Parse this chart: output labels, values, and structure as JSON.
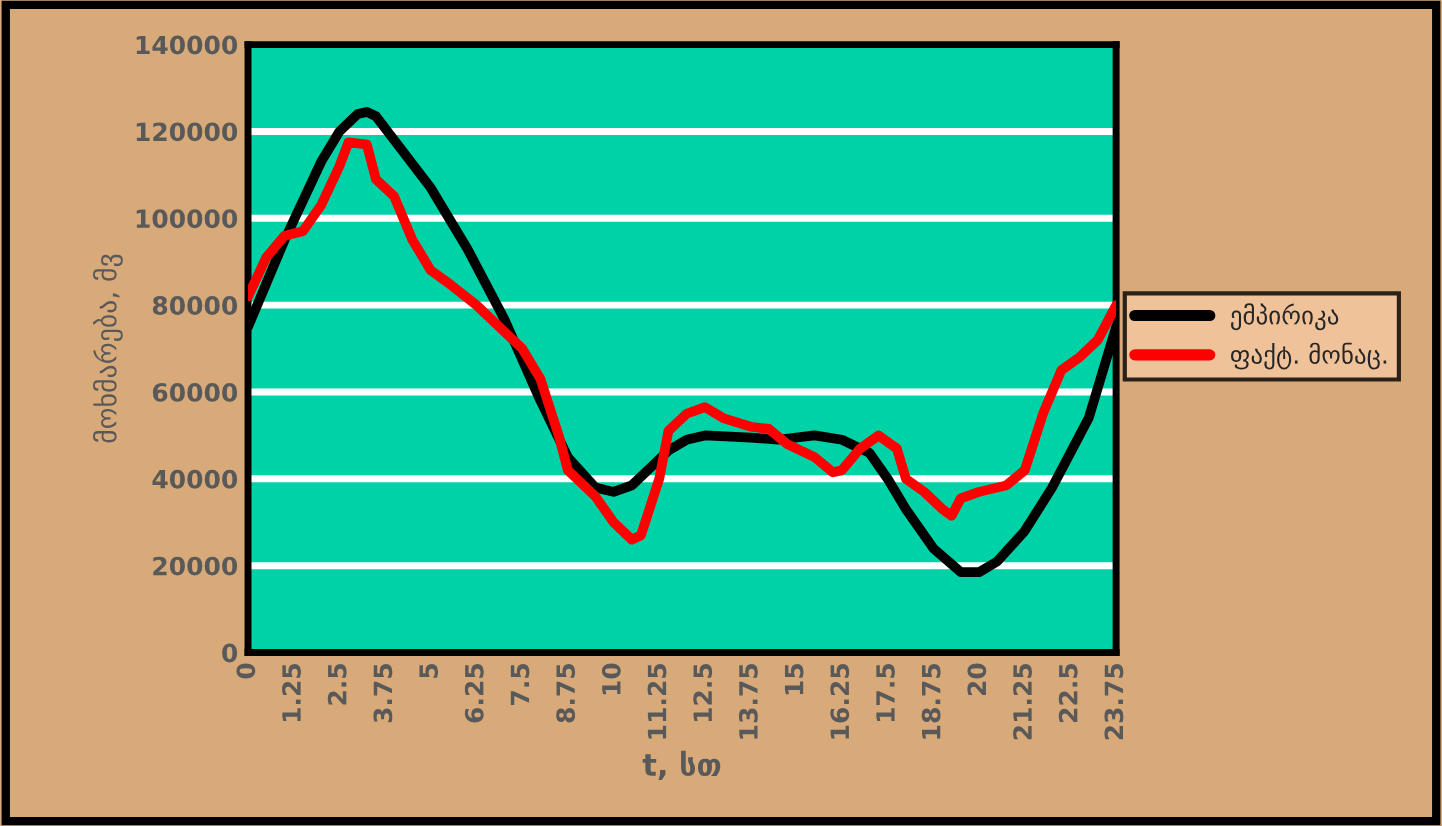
{
  "chart_data": {
    "type": "line",
    "xlabel": "t, სთ",
    "ylabel": "მოხმარება, მვ",
    "xlim": [
      0,
      23.75
    ],
    "xticks": [
      0,
      1.25,
      2.5,
      3.75,
      5,
      6.25,
      7.5,
      8.75,
      10,
      11.25,
      12.5,
      13.75,
      15,
      16.25,
      17.5,
      18.75,
      20,
      21.25,
      22.5,
      23.75
    ],
    "ylim": [
      0,
      140000
    ],
    "yticks": [
      0,
      20000,
      40000,
      60000,
      80000,
      100000,
      120000,
      140000
    ],
    "grid": "y",
    "legend": "right",
    "marker": "none",
    "line_style": "solid",
    "series": [
      {
        "name": "ემპირიკა",
        "color": "#000000",
        "x": [
          0,
          1,
          2,
          2.5,
          3,
          3.25,
          3.5,
          4,
          5,
          6,
          7,
          8,
          8.75,
          9.5,
          10,
          10.5,
          11,
          11.5,
          12,
          12.5,
          13.75,
          14.5,
          15.5,
          16.25,
          17,
          17.5,
          18,
          18.75,
          19.5,
          20,
          20.5,
          21.25,
          22,
          22.5,
          23,
          23.75
        ],
        "values": [
          75000,
          95000,
          113000,
          120000,
          124000,
          124500,
          123500,
          118000,
          107000,
          93000,
          77000,
          58000,
          45000,
          38000,
          37000,
          38500,
          42500,
          46500,
          49000,
          50000,
          49500,
          49000,
          50000,
          49000,
          46000,
          40000,
          33000,
          24000,
          18500,
          18500,
          21000,
          28000,
          38000,
          46000,
          54000,
          75000
        ]
      },
      {
        "name": "ფაქტ. მონაც.",
        "color": "#ff0000",
        "x": [
          0,
          0.5,
          1,
          1.5,
          2,
          2.5,
          2.75,
          3.25,
          3.5,
          4,
          4.5,
          5,
          5.5,
          6.25,
          7,
          7.5,
          8,
          8.5,
          8.75,
          9.5,
          10,
          10.5,
          10.75,
          11.25,
          11.5,
          12,
          12.5,
          13,
          13.75,
          14.25,
          14.75,
          15.5,
          16,
          16.25,
          16.75,
          17.25,
          17.75,
          18,
          18.5,
          19,
          19.25,
          19.5,
          20,
          20.75,
          21.25,
          21.75,
          22.25,
          22.75,
          23.25,
          23.75
        ],
        "values": [
          82000,
          91000,
          96000,
          97000,
          103000,
          112000,
          117500,
          117000,
          109000,
          105000,
          95000,
          88000,
          85000,
          80000,
          74000,
          70000,
          63000,
          50000,
          42000,
          36000,
          30000,
          26000,
          27000,
          40000,
          51000,
          55000,
          56500,
          54000,
          52000,
          51500,
          48000,
          45000,
          41500,
          42000,
          47000,
          50000,
          47000,
          40000,
          37000,
          33000,
          31500,
          35500,
          37000,
          38500,
          42000,
          55000,
          65000,
          68000,
          72000,
          80000
        ]
      }
    ]
  }
}
